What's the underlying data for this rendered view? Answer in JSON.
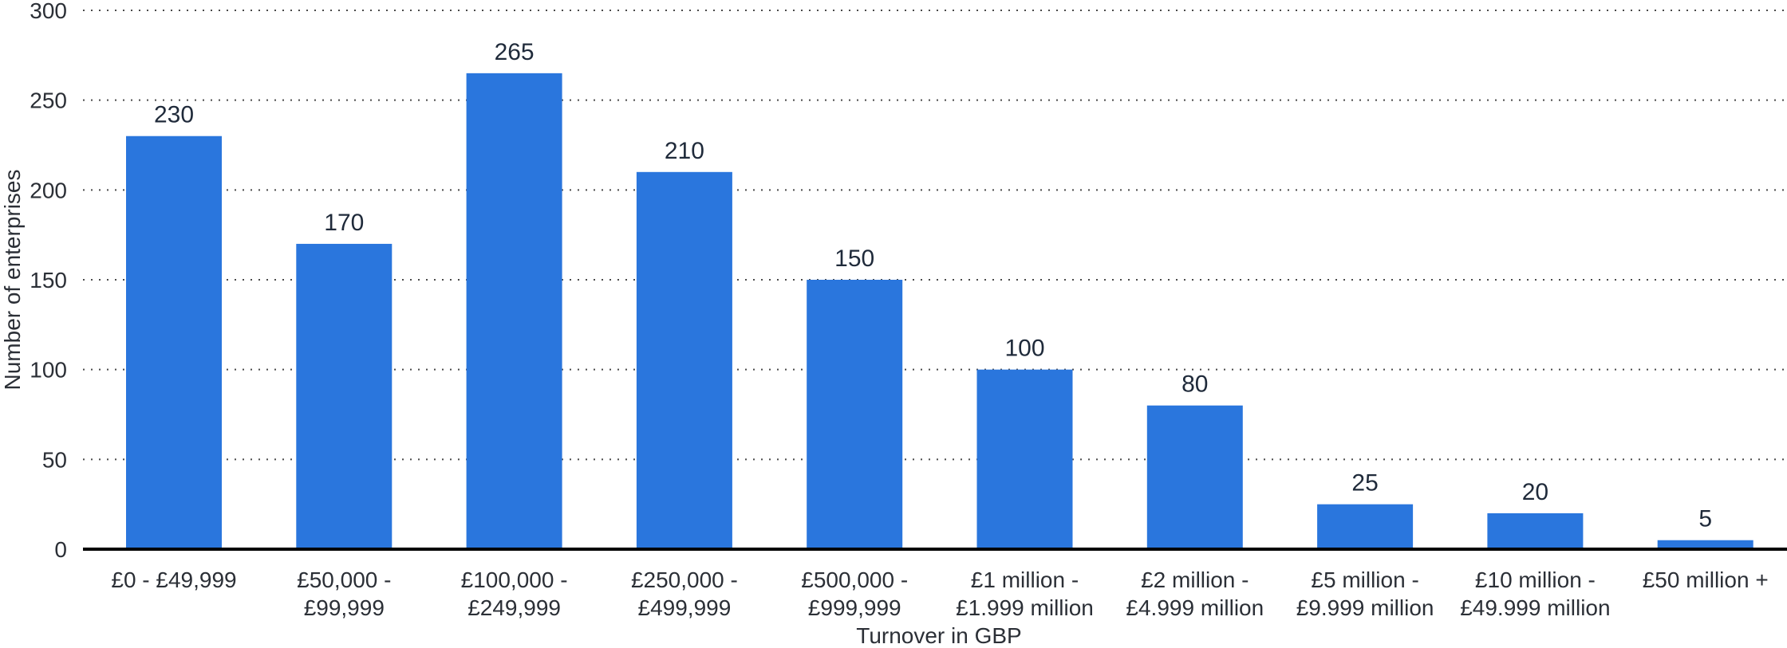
{
  "chart_data": {
    "type": "bar",
    "title": "",
    "xlabel": "Turnover in GBP",
    "ylabel": "Number of enterprises",
    "ylim": [
      0,
      300
    ],
    "yticks": [
      0,
      50,
      100,
      150,
      200,
      250,
      300
    ],
    "grid": true,
    "bar_color": "#2a76dd",
    "categories": [
      [
        "£0 - £49,999"
      ],
      [
        "£50,000 -",
        "£99,999"
      ],
      [
        "£100,000 -",
        "£249,999"
      ],
      [
        "£250,000 -",
        "£499,999"
      ],
      [
        "£500,000 -",
        "£999,999"
      ],
      [
        "£1 million -",
        "£1.999 million"
      ],
      [
        "£2 million -",
        "£4.999 million"
      ],
      [
        "£5 million -",
        "£9.999 million"
      ],
      [
        "£10 million -",
        "£49.999 million"
      ],
      [
        "£50 million +"
      ]
    ],
    "values": [
      230,
      170,
      265,
      210,
      150,
      100,
      80,
      25,
      20,
      5
    ]
  }
}
